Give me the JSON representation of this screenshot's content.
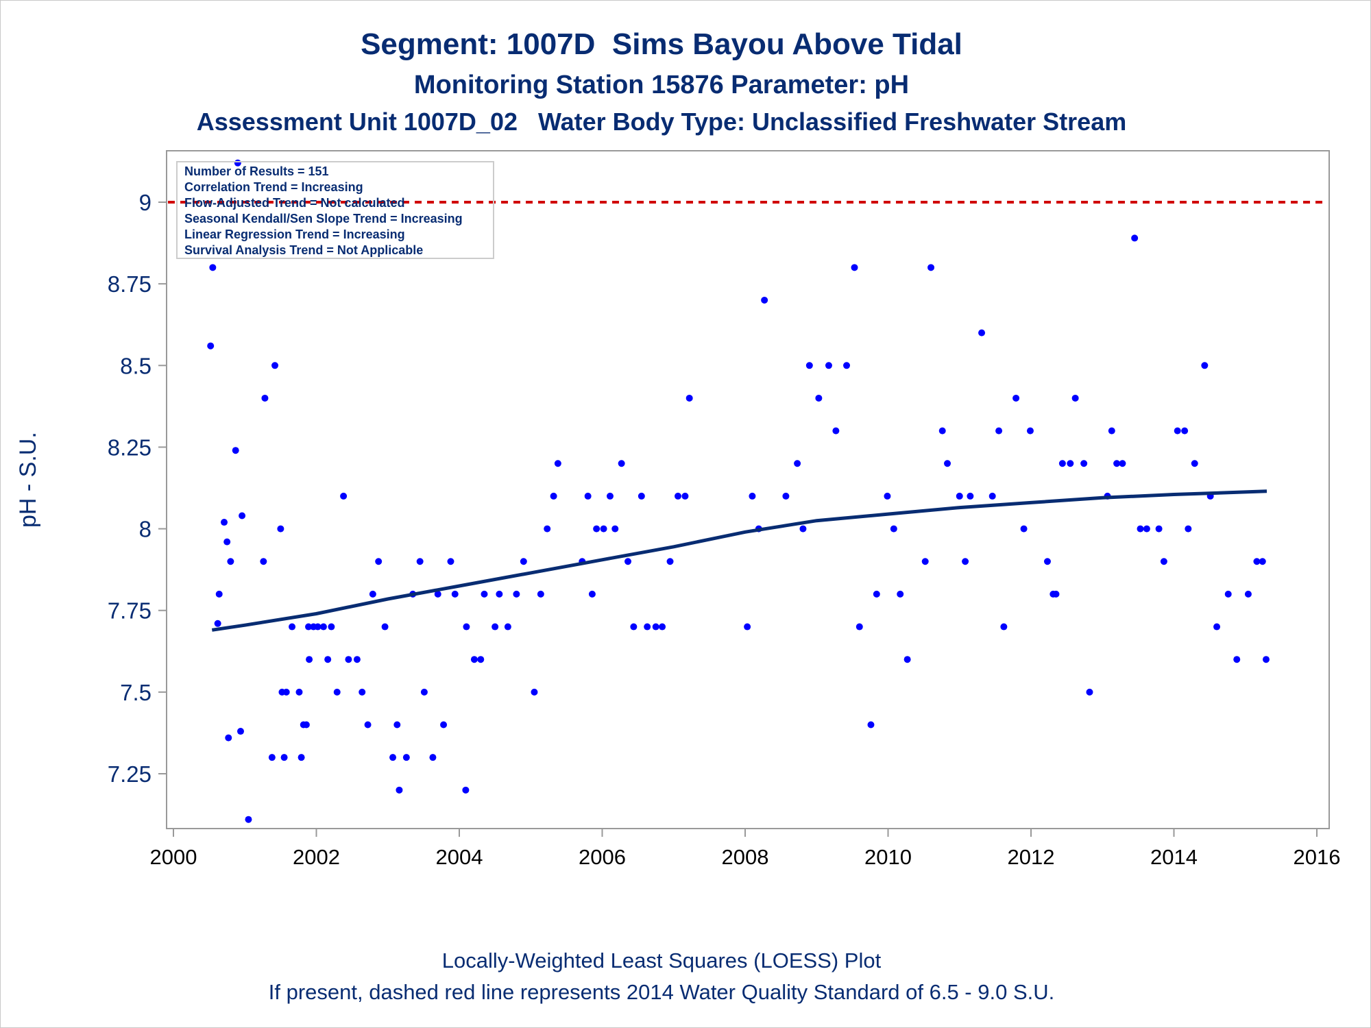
{
  "chart_data": {
    "type": "scatter",
    "title": "Segment: 1007D  Sims Bayou Above Tidal",
    "subtitle": "Monitoring Station 15876 Parameter: pH",
    "subtitle2": "Assessment Unit 1007D_02   Water Body Type: Unclassified Freshwater Stream",
    "xlabel": "",
    "ylabel": "pH - S.U.",
    "xlim": [
      2000,
      2016
    ],
    "ylim": [
      7.1,
      9.16
    ],
    "x_ticks": [
      "2000",
      "2002",
      "2004",
      "2006",
      "2008",
      "2010",
      "2012",
      "2014",
      "2016"
    ],
    "y_ticks": [
      "7.25",
      "7.5",
      "7.75",
      "8",
      "8.25",
      "8.5",
      "8.75",
      "9"
    ],
    "grid": false,
    "inset_box": [
      "Number of Results = 151",
      "Correlation Trend = Increasing",
      "Flow-Adjusted Trend = Not calculated",
      "Seasonal Kendall/Sen Slope Trend = Increasing",
      "Linear Regression Trend = Increasing",
      "Survival Analysis Trend = Not Applicable"
    ],
    "reference_line": {
      "y": 9.0,
      "color": "#D00000",
      "style": "dashed"
    },
    "points": [
      [
        2000.52,
        8.56
      ],
      [
        2000.55,
        8.8
      ],
      [
        2000.62,
        7.71
      ],
      [
        2000.64,
        7.8
      ],
      [
        2000.71,
        8.02
      ],
      [
        2000.75,
        7.96
      ],
      [
        2000.77,
        7.36
      ],
      [
        2000.8,
        7.9
      ],
      [
        2000.87,
        8.24
      ],
      [
        2000.9,
        9.12
      ],
      [
        2000.94,
        7.38
      ],
      [
        2000.96,
        8.04
      ],
      [
        2001.05,
        7.11
      ],
      [
        2001.26,
        7.9
      ],
      [
        2001.28,
        8.4
      ],
      [
        2001.38,
        7.3
      ],
      [
        2001.42,
        8.5
      ],
      [
        2001.5,
        8.0
      ],
      [
        2001.52,
        7.5
      ],
      [
        2001.55,
        7.3
      ],
      [
        2001.58,
        7.5
      ],
      [
        2001.66,
        7.7
      ],
      [
        2001.76,
        7.5
      ],
      [
        2001.79,
        7.3
      ],
      [
        2001.82,
        7.4
      ],
      [
        2001.86,
        7.4
      ],
      [
        2001.89,
        7.7
      ],
      [
        2001.9,
        7.6
      ],
      [
        2001.96,
        7.7
      ],
      [
        2002.02,
        7.7
      ],
      [
        2002.1,
        7.7
      ],
      [
        2002.16,
        7.6
      ],
      [
        2002.21,
        7.7
      ],
      [
        2002.29,
        7.5
      ],
      [
        2002.38,
        8.1
      ],
      [
        2002.45,
        7.6
      ],
      [
        2002.57,
        7.6
      ],
      [
        2002.64,
        7.5
      ],
      [
        2002.72,
        7.4
      ],
      [
        2002.79,
        7.8
      ],
      [
        2002.87,
        7.9
      ],
      [
        2002.96,
        7.7
      ],
      [
        2003.07,
        7.3
      ],
      [
        2003.13,
        7.4
      ],
      [
        2003.16,
        7.2
      ],
      [
        2003.26,
        7.3
      ],
      [
        2003.35,
        7.8
      ],
      [
        2003.45,
        7.9
      ],
      [
        2003.51,
        7.5
      ],
      [
        2003.63,
        7.3
      ],
      [
        2003.7,
        7.8
      ],
      [
        2003.78,
        7.4
      ],
      [
        2003.88,
        7.9
      ],
      [
        2003.94,
        7.8
      ],
      [
        2004.09,
        7.2
      ],
      [
        2004.1,
        7.7
      ],
      [
        2004.21,
        7.6
      ],
      [
        2004.3,
        7.6
      ],
      [
        2004.35,
        7.8
      ],
      [
        2004.5,
        7.7
      ],
      [
        2004.56,
        7.8
      ],
      [
        2004.68,
        7.7
      ],
      [
        2004.8,
        7.8
      ],
      [
        2004.9,
        7.9
      ],
      [
        2005.05,
        7.5
      ],
      [
        2005.14,
        7.8
      ],
      [
        2005.23,
        8.0
      ],
      [
        2005.32,
        8.1
      ],
      [
        2005.38,
        8.2
      ],
      [
        2005.72,
        7.9
      ],
      [
        2005.8,
        8.1
      ],
      [
        2005.86,
        7.8
      ],
      [
        2005.92,
        8.0
      ],
      [
        2006.02,
        8.0
      ],
      [
        2006.11,
        8.1
      ],
      [
        2006.18,
        8.0
      ],
      [
        2006.27,
        8.2
      ],
      [
        2006.36,
        7.9
      ],
      [
        2006.44,
        7.7
      ],
      [
        2006.55,
        8.1
      ],
      [
        2006.63,
        7.7
      ],
      [
        2006.75,
        7.7
      ],
      [
        2006.84,
        7.7
      ],
      [
        2006.95,
        7.9
      ],
      [
        2007.06,
        8.1
      ],
      [
        2007.16,
        8.1
      ],
      [
        2007.22,
        8.4
      ],
      [
        2008.03,
        7.7
      ],
      [
        2008.1,
        8.1
      ],
      [
        2008.19,
        8.0
      ],
      [
        2008.27,
        8.7
      ],
      [
        2008.57,
        8.1
      ],
      [
        2008.73,
        8.2
      ],
      [
        2008.81,
        8.0
      ],
      [
        2008.9,
        8.5
      ],
      [
        2009.03,
        8.4
      ],
      [
        2009.17,
        8.5
      ],
      [
        2009.27,
        8.3
      ],
      [
        2009.42,
        8.5
      ],
      [
        2009.53,
        8.8
      ],
      [
        2009.6,
        7.7
      ],
      [
        2009.76,
        7.4
      ],
      [
        2009.84,
        7.8
      ],
      [
        2009.99,
        8.1
      ],
      [
        2010.08,
        8.0
      ],
      [
        2010.17,
        7.8
      ],
      [
        2010.27,
        7.6
      ],
      [
        2010.52,
        7.9
      ],
      [
        2010.6,
        8.8
      ],
      [
        2010.76,
        8.3
      ],
      [
        2010.83,
        8.2
      ],
      [
        2011.0,
        8.1
      ],
      [
        2011.08,
        7.9
      ],
      [
        2011.15,
        8.1
      ],
      [
        2011.31,
        8.6
      ],
      [
        2011.46,
        8.1
      ],
      [
        2011.55,
        8.3
      ],
      [
        2011.62,
        7.7
      ],
      [
        2011.79,
        8.4
      ],
      [
        2011.9,
        8.0
      ],
      [
        2011.99,
        8.3
      ],
      [
        2012.23,
        7.9
      ],
      [
        2012.31,
        7.8
      ],
      [
        2012.35,
        7.8
      ],
      [
        2012.44,
        8.2
      ],
      [
        2012.55,
        8.2
      ],
      [
        2012.62,
        8.4
      ],
      [
        2012.74,
        8.2
      ],
      [
        2012.82,
        7.5
      ],
      [
        2013.07,
        8.1
      ],
      [
        2013.13,
        8.3
      ],
      [
        2013.2,
        8.2
      ],
      [
        2013.28,
        8.2
      ],
      [
        2013.45,
        8.89
      ],
      [
        2013.53,
        8.0
      ],
      [
        2013.62,
        8.0
      ],
      [
        2013.79,
        8.0
      ],
      [
        2013.86,
        7.9
      ],
      [
        2014.05,
        8.3
      ],
      [
        2014.15,
        8.3
      ],
      [
        2014.2,
        8.0
      ],
      [
        2014.29,
        8.2
      ],
      [
        2014.43,
        8.5
      ],
      [
        2014.51,
        8.1
      ],
      [
        2014.6,
        7.7
      ],
      [
        2014.76,
        7.8
      ],
      [
        2014.88,
        7.6
      ],
      [
        2015.04,
        7.8
      ],
      [
        2015.16,
        7.9
      ],
      [
        2015.24,
        7.9
      ],
      [
        2015.29,
        7.6
      ]
    ],
    "loess": [
      [
        2000.54,
        7.69
      ],
      [
        2001.0,
        7.705
      ],
      [
        2002.0,
        7.74
      ],
      [
        2003.0,
        7.785
      ],
      [
        2004.0,
        7.825
      ],
      [
        2005.0,
        7.865
      ],
      [
        2006.0,
        7.905
      ],
      [
        2007.0,
        7.945
      ],
      [
        2008.0,
        7.99
      ],
      [
        2009.0,
        8.025
      ],
      [
        2010.0,
        8.045
      ],
      [
        2011.0,
        8.065
      ],
      [
        2012.0,
        8.08
      ],
      [
        2013.0,
        8.095
      ],
      [
        2014.0,
        8.105
      ],
      [
        2015.3,
        8.115
      ]
    ],
    "colors": {
      "points": "#0000FF",
      "loess": "#082C72",
      "reference": "#D00000",
      "text": "#082C72",
      "axis": "#999999"
    }
  },
  "footnotes": {
    "line1": "Locally-Weighted Least Squares (LOESS) Plot",
    "line2": "If present, dashed red line represents 2014 Water Quality Standard of 6.5 - 9.0 S.U."
  }
}
